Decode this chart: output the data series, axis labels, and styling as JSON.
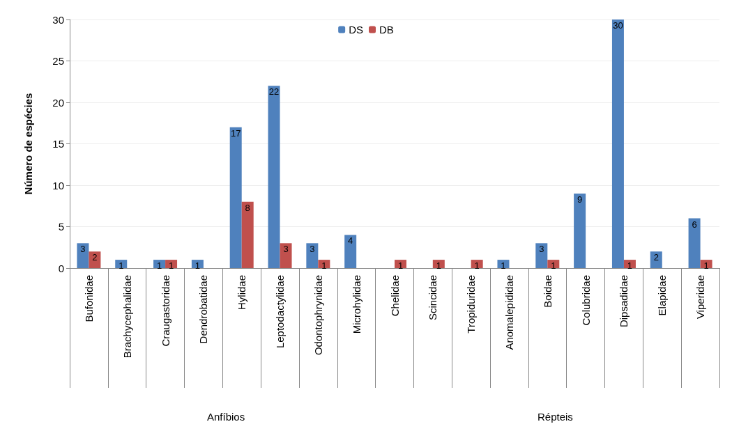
{
  "chart_data": {
    "type": "bar",
    "ylabel": "Número de espécies",
    "categories": [
      "Bufonidae",
      "Brachycephalidae",
      "Craugastoridae",
      "Dendrobatidae",
      "Hylidae",
      "Leptodactylidae",
      "Odontophrynidae",
      "Microhylidae",
      "Chelidae",
      "Scincidae",
      "Tropiduridae",
      "Anomalepididae",
      "Boidae",
      "Colubridae",
      "Dipsadidae",
      "Elapidae",
      "Viperidae"
    ],
    "series": [
      {
        "name": "DS",
        "color": "#4f81bd",
        "values": [
          3,
          1,
          1,
          1,
          17,
          22,
          3,
          4,
          null,
          null,
          null,
          1,
          3,
          9,
          30,
          2,
          6
        ]
      },
      {
        "name": "DB",
        "color": "#c0504d",
        "values": [
          2,
          null,
          1,
          null,
          8,
          3,
          1,
          null,
          1,
          1,
          1,
          null,
          1,
          null,
          1,
          null,
          1
        ]
      }
    ],
    "ylim": [
      0,
      30
    ],
    "yticks": [
      0,
      5,
      10,
      15,
      20,
      25,
      30
    ],
    "grid": "y",
    "legend": "top",
    "data_labels": true,
    "annotations": [
      "Anfíbios",
      "Répteis"
    ]
  }
}
